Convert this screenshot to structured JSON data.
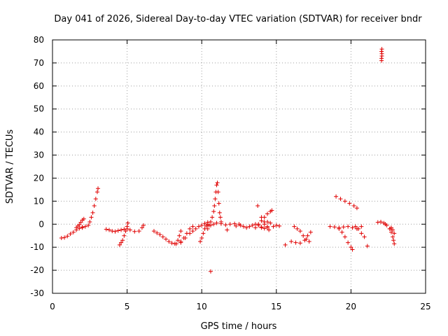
{
  "chart_data": {
    "type": "scatter",
    "title": "Day 041 of 2026, Sidereal Day-to-day VTEC variation (SDTVAR) for receiver bndr",
    "xlabel": "GPS time / hours",
    "ylabel": "SDTVAR / TECUs",
    "xlim": [
      0,
      25
    ],
    "ylim": [
      -30,
      80
    ],
    "xticks": [
      0,
      5,
      10,
      15,
      20,
      25
    ],
    "yticks": [
      -30,
      -20,
      -10,
      0,
      10,
      20,
      30,
      40,
      50,
      60,
      70,
      80
    ],
    "grid": true,
    "marker": "plus",
    "color": "#e00000",
    "series": [
      {
        "name": "arc1",
        "points": [
          [
            0.6,
            -6
          ],
          [
            0.8,
            -5.8
          ],
          [
            1.0,
            -5.2
          ],
          [
            1.2,
            -4.2
          ],
          [
            1.4,
            -3.5
          ],
          [
            1.6,
            -2.5
          ],
          [
            1.8,
            -1.8
          ],
          [
            2.0,
            -1.2
          ]
        ]
      },
      {
        "name": "arc2",
        "points": [
          [
            1.6,
            -1.5
          ],
          [
            1.7,
            -0.8
          ],
          [
            1.8,
            -0.2
          ],
          [
            1.9,
            0.8
          ],
          [
            2.0,
            1.8
          ],
          [
            2.1,
            2.3
          ]
        ]
      },
      {
        "name": "arc3",
        "points": [
          [
            2.0,
            -1.5
          ],
          [
            2.2,
            -1
          ],
          [
            2.4,
            -0.5
          ],
          [
            2.5,
            1
          ],
          [
            2.6,
            3
          ],
          [
            2.7,
            5
          ],
          [
            2.8,
            8
          ],
          [
            2.9,
            11
          ],
          [
            3.0,
            14
          ],
          [
            3.05,
            15.5
          ]
        ]
      },
      {
        "name": "arc4",
        "points": [
          [
            3.6,
            -2.2
          ],
          [
            3.8,
            -2.5
          ],
          [
            4.0,
            -3
          ],
          [
            4.2,
            -3.2
          ],
          [
            4.4,
            -2.8
          ],
          [
            4.6,
            -2.5
          ],
          [
            4.8,
            -2.2
          ],
          [
            5.0,
            -2
          ],
          [
            5.2,
            -2.5
          ],
          [
            5.5,
            -3.2
          ],
          [
            5.8,
            -3
          ],
          [
            6.0,
            -1.5
          ],
          [
            6.1,
            -0.5
          ]
        ]
      },
      {
        "name": "arc5",
        "points": [
          [
            4.5,
            -9
          ],
          [
            4.6,
            -8
          ],
          [
            4.7,
            -7
          ],
          [
            4.8,
            -5
          ],
          [
            4.9,
            -3
          ],
          [
            5.0,
            -1
          ],
          [
            5.05,
            0.5
          ]
        ]
      },
      {
        "name": "arc6",
        "points": [
          [
            6.8,
            -3
          ],
          [
            7.0,
            -3.8
          ],
          [
            7.2,
            -4.5
          ],
          [
            7.4,
            -5.5
          ],
          [
            7.6,
            -6.5
          ],
          [
            7.8,
            -7.5
          ],
          [
            8.0,
            -8.2
          ],
          [
            8.2,
            -8.5
          ],
          [
            8.4,
            -7
          ],
          [
            8.5,
            -5
          ],
          [
            8.6,
            -3
          ]
        ]
      },
      {
        "name": "arc7",
        "points": [
          [
            8.3,
            -8.5
          ],
          [
            8.6,
            -7.5
          ],
          [
            8.9,
            -6
          ],
          [
            9.2,
            -4
          ],
          [
            9.4,
            -3
          ],
          [
            9.6,
            -2
          ],
          [
            9.8,
            -1
          ],
          [
            10.0,
            -0.5
          ],
          [
            10.2,
            0.3
          ],
          [
            10.4,
            0.8
          ]
        ]
      },
      {
        "name": "arc8",
        "points": [
          [
            8.6,
            -8
          ],
          [
            8.8,
            -6
          ],
          [
            9.0,
            -4
          ],
          [
            9.2,
            -2
          ],
          [
            9.4,
            -1
          ]
        ]
      },
      {
        "name": "arc9",
        "points": [
          [
            9.9,
            -7.5
          ],
          [
            10.0,
            -6
          ],
          [
            10.1,
            -4
          ],
          [
            10.2,
            -2
          ],
          [
            10.3,
            -0.8
          ],
          [
            10.4,
            -0.2
          ]
        ]
      },
      {
        "name": "arc10",
        "points": [
          [
            10.4,
            -2
          ],
          [
            10.5,
            -0.5
          ],
          [
            10.6,
            1
          ],
          [
            10.7,
            3
          ],
          [
            10.8,
            5.5
          ],
          [
            10.85,
            8
          ],
          [
            10.9,
            11
          ],
          [
            10.95,
            14
          ],
          [
            11.0,
            17
          ],
          [
            11.05,
            18
          ],
          [
            11.1,
            14
          ],
          [
            11.15,
            9
          ],
          [
            11.2,
            5
          ],
          [
            11.25,
            3
          ],
          [
            11.3,
            1
          ]
        ]
      },
      {
        "name": "arc11",
        "points": [
          [
            10.6,
            -0.5
          ],
          [
            10.8,
            0
          ],
          [
            11.0,
            0.5
          ],
          [
            11.3,
            0.2
          ],
          [
            11.6,
            -0.3
          ],
          [
            11.9,
            0
          ],
          [
            12.2,
            0.2
          ],
          [
            12.5,
            0
          ]
        ]
      },
      {
        "name": "arc12",
        "points": [
          [
            12.6,
            -0.5
          ],
          [
            12.8,
            -1
          ],
          [
            13.0,
            -1.5
          ],
          [
            13.2,
            -1
          ],
          [
            13.4,
            -0.5
          ],
          [
            13.6,
            0
          ],
          [
            13.8,
            -0.5
          ],
          [
            14.0,
            -1.2
          ],
          [
            14.2,
            -1.8
          ],
          [
            14.4,
            -1.5
          ]
        ]
      },
      {
        "name": "arc13",
        "points": [
          [
            13.6,
            -1.5
          ],
          [
            13.8,
            0
          ],
          [
            14.0,
            1.5
          ],
          [
            14.2,
            3
          ],
          [
            14.4,
            4.5
          ],
          [
            14.6,
            5.5
          ],
          [
            14.7,
            6
          ]
        ]
      },
      {
        "name": "arc14",
        "points": [
          [
            14.0,
            -1.5
          ],
          [
            14.2,
            0
          ],
          [
            14.4,
            1
          ],
          [
            14.6,
            0.5
          ],
          [
            14.8,
            -1
          ],
          [
            15.0,
            -0.5
          ],
          [
            15.2,
            -0.8
          ]
        ]
      },
      {
        "name": "arc15",
        "points": [
          [
            14.0,
            3
          ],
          [
            14.2,
            1
          ],
          [
            14.4,
            -1
          ],
          [
            14.5,
            -2.5
          ]
        ]
      },
      {
        "name": "arc16",
        "points": [
          [
            16.2,
            -1
          ],
          [
            16.4,
            -2
          ],
          [
            16.6,
            -3
          ],
          [
            16.8,
            -5
          ],
          [
            17.0,
            -6.5
          ],
          [
            17.2,
            -7.5
          ]
        ]
      },
      {
        "name": "arc17",
        "points": [
          [
            16.0,
            -7.5
          ],
          [
            16.3,
            -8
          ],
          [
            16.6,
            -8.2
          ],
          [
            16.9,
            -7
          ],
          [
            17.1,
            -5
          ],
          [
            17.3,
            -3.5
          ]
        ]
      },
      {
        "name": "arc18",
        "points": [
          [
            18.6,
            -1
          ],
          [
            18.9,
            -1.2
          ],
          [
            19.2,
            -1.5
          ],
          [
            19.5,
            -1.2
          ],
          [
            19.8,
            -1
          ],
          [
            20.1,
            -1.5
          ],
          [
            20.4,
            -2
          ],
          [
            20.7,
            -1
          ]
        ]
      },
      {
        "name": "arc19",
        "points": [
          [
            19.2,
            -2
          ],
          [
            19.4,
            -3.5
          ],
          [
            19.6,
            -5.5
          ],
          [
            19.8,
            -8
          ],
          [
            20.0,
            -10
          ],
          [
            20.1,
            -11
          ]
        ]
      },
      {
        "name": "arc20",
        "points": [
          [
            19.0,
            12
          ],
          [
            19.3,
            11
          ],
          [
            19.6,
            10
          ],
          [
            19.9,
            9
          ],
          [
            20.2,
            8
          ],
          [
            20.4,
            7
          ]
        ]
      },
      {
        "name": "arc21",
        "points": [
          [
            20.3,
            -1
          ],
          [
            20.5,
            -2
          ],
          [
            20.7,
            -4
          ],
          [
            20.9,
            -5.5
          ]
        ]
      },
      {
        "name": "arc22",
        "points": [
          [
            21.8,
            0.8
          ],
          [
            22.0,
            1
          ],
          [
            22.2,
            0.5
          ],
          [
            22.3,
            0
          ],
          [
            22.4,
            -0.5
          ],
          [
            22.6,
            -2
          ],
          [
            22.7,
            -3.5
          ],
          [
            22.8,
            -5.5
          ],
          [
            22.85,
            -7
          ],
          [
            22.9,
            -8.5
          ]
        ]
      },
      {
        "name": "arc23",
        "points": [
          [
            22.6,
            -2
          ],
          [
            22.7,
            -1.5
          ],
          [
            22.8,
            -2.5
          ],
          [
            22.9,
            -4
          ]
        ]
      },
      {
        "name": "arc24",
        "points": [
          [
            22.05,
            71
          ],
          [
            22.05,
            72
          ],
          [
            22.07,
            73
          ],
          [
            22.07,
            74
          ],
          [
            22.05,
            75
          ],
          [
            22.07,
            76
          ]
        ]
      },
      {
        "name": "isolated",
        "points": [
          [
            10.6,
            -20.5
          ],
          [
            11.7,
            -2.5
          ],
          [
            12.3,
            -0.8
          ],
          [
            13.75,
            8
          ],
          [
            15.6,
            -9
          ],
          [
            21.1,
            -9.5
          ]
        ]
      }
    ]
  }
}
